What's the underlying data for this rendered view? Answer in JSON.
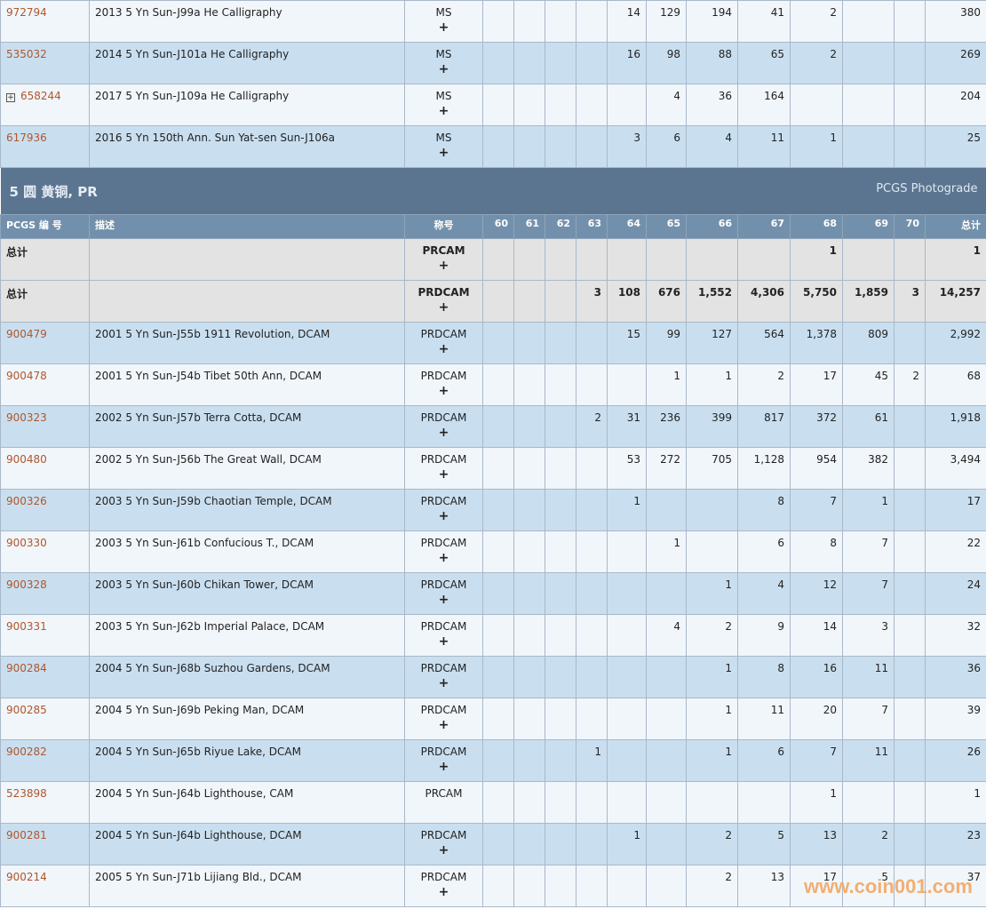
{
  "top_rows": [
    {
      "pcgs": "972794",
      "desc": "2013 5 Yn Sun-J99a He Calligraphy",
      "designation": "MS",
      "plus": "+",
      "grades": [
        "",
        "",
        "",
        "",
        "14",
        "129",
        "194",
        "41",
        "2",
        "",
        ""
      ],
      "total": "380"
    },
    {
      "pcgs": "535032",
      "desc": "2014 5 Yn Sun-J101a He Calligraphy",
      "designation": "MS",
      "plus": "+",
      "grades": [
        "",
        "",
        "",
        "",
        "16",
        "98",
        "88",
        "65",
        "2",
        "",
        ""
      ],
      "total": "269"
    },
    {
      "pcgs": "658244",
      "expandable": true,
      "desc": "2017 5 Yn Sun-J109a He Calligraphy",
      "designation": "MS",
      "plus": "+",
      "grades": [
        "",
        "",
        "",
        "",
        "",
        "4",
        "36",
        "164",
        "",
        "",
        ""
      ],
      "total": "204"
    },
    {
      "pcgs": "617936",
      "desc": "2016 5 Yn 150th Ann. Sun Yat-sen Sun-J106a",
      "designation": "MS",
      "plus": "+",
      "grades": [
        "",
        "",
        "",
        "",
        "3",
        "6",
        "4",
        "11",
        "1",
        "",
        ""
      ],
      "total": "25"
    }
  ],
  "section": {
    "title": "5 圆 黄铜, PR",
    "right_label": "PCGS Photograde"
  },
  "columns": {
    "pcgs": "PCGS 编 号",
    "desc": "描述",
    "designation": "称号",
    "grades": [
      "60",
      "61",
      "62",
      "63",
      "64",
      "65",
      "66",
      "67",
      "68",
      "69",
      "70"
    ],
    "total": "总计"
  },
  "total_rows": [
    {
      "label": "总计",
      "designation": "PRCAM",
      "plus": "+",
      "grades": [
        "",
        "",
        "",
        "",
        "",
        "",
        "",
        "",
        "1",
        "",
        ""
      ],
      "total": "1"
    },
    {
      "label": "总计",
      "designation": "PRDCAM",
      "plus": "+",
      "grades": [
        "",
        "",
        "",
        "3",
        "108",
        "676",
        "1,552",
        "4,306",
        "5,750",
        "1,859",
        "3"
      ],
      "total": "14,257"
    }
  ],
  "rows": [
    {
      "pcgs": "900479",
      "desc": "2001 5 Yn Sun-J55b 1911 Revolution, DCAM",
      "designation": "PRDCAM",
      "plus": "+",
      "grades": [
        "",
        "",
        "",
        "",
        "15",
        "99",
        "127",
        "564",
        "1,378",
        "809",
        ""
      ],
      "total": "2,992"
    },
    {
      "pcgs": "900478",
      "desc": "2001 5 Yn Sun-J54b Tibet 50th Ann, DCAM",
      "designation": "PRDCAM",
      "plus": "+",
      "grades": [
        "",
        "",
        "",
        "",
        "",
        "1",
        "1",
        "2",
        "17",
        "45",
        "2"
      ],
      "total": "68"
    },
    {
      "pcgs": "900323",
      "desc": "2002 5 Yn Sun-J57b Terra Cotta, DCAM",
      "designation": "PRDCAM",
      "plus": "+",
      "grades": [
        "",
        "",
        "",
        "2",
        "31",
        "236",
        "399",
        "817",
        "372",
        "61",
        ""
      ],
      "total": "1,918"
    },
    {
      "pcgs": "900480",
      "desc": "2002 5 Yn Sun-J56b The Great Wall, DCAM",
      "designation": "PRDCAM",
      "plus": "+",
      "grades": [
        "",
        "",
        "",
        "",
        "53",
        "272",
        "705",
        "1,128",
        "954",
        "382",
        ""
      ],
      "total": "3,494"
    },
    {
      "pcgs": "900326",
      "desc": "2003 5 Yn Sun-J59b Chaotian Temple, DCAM",
      "designation": "PRDCAM",
      "plus": "+",
      "grades": [
        "",
        "",
        "",
        "",
        "1",
        "",
        "",
        "8",
        "7",
        "1",
        ""
      ],
      "total": "17"
    },
    {
      "pcgs": "900330",
      "desc": "2003 5 Yn Sun-J61b Confucious T., DCAM",
      "designation": "PRDCAM",
      "plus": "+",
      "grades": [
        "",
        "",
        "",
        "",
        "",
        "1",
        "",
        "6",
        "8",
        "7",
        ""
      ],
      "total": "22"
    },
    {
      "pcgs": "900328",
      "desc": "2003 5 Yn Sun-J60b Chikan Tower, DCAM",
      "designation": "PRDCAM",
      "plus": "+",
      "grades": [
        "",
        "",
        "",
        "",
        "",
        "",
        "1",
        "4",
        "12",
        "7",
        ""
      ],
      "total": "24"
    },
    {
      "pcgs": "900331",
      "desc": "2003 5 Yn Sun-J62b Imperial Palace, DCAM",
      "designation": "PRDCAM",
      "plus": "+",
      "grades": [
        "",
        "",
        "",
        "",
        "",
        "4",
        "2",
        "9",
        "14",
        "3",
        ""
      ],
      "total": "32"
    },
    {
      "pcgs": "900284",
      "desc": "2004 5 Yn Sun-J68b Suzhou Gardens, DCAM",
      "designation": "PRDCAM",
      "plus": "+",
      "grades": [
        "",
        "",
        "",
        "",
        "",
        "",
        "1",
        "8",
        "16",
        "11",
        ""
      ],
      "total": "36"
    },
    {
      "pcgs": "900285",
      "desc": "2004 5 Yn Sun-J69b Peking Man, DCAM",
      "designation": "PRDCAM",
      "plus": "+",
      "grades": [
        "",
        "",
        "",
        "",
        "",
        "",
        "1",
        "11",
        "20",
        "7",
        ""
      ],
      "total": "39"
    },
    {
      "pcgs": "900282",
      "desc": "2004 5 Yn Sun-J65b Riyue Lake, DCAM",
      "designation": "PRDCAM",
      "plus": "+",
      "grades": [
        "",
        "",
        "",
        "1",
        "",
        "",
        "1",
        "6",
        "7",
        "11",
        ""
      ],
      "total": "26"
    },
    {
      "pcgs": "523898",
      "desc": "2004 5 Yn Sun-J64b Lighthouse, CAM",
      "designation": "PRCAM",
      "plus": "",
      "grades": [
        "",
        "",
        "",
        "",
        "",
        "",
        "",
        "",
        "1",
        "",
        ""
      ],
      "total": "1"
    },
    {
      "pcgs": "900281",
      "desc": "2004 5 Yn Sun-J64b Lighthouse, DCAM",
      "designation": "PRDCAM",
      "plus": "+",
      "grades": [
        "",
        "",
        "",
        "",
        "1",
        "",
        "2",
        "5",
        "13",
        "2",
        ""
      ],
      "total": "23"
    },
    {
      "pcgs": "900214",
      "desc": "2005 5 Yn Sun-J71b Lijiang Bld., DCAM",
      "designation": "PRDCAM",
      "plus": "+",
      "grades": [
        "",
        "",
        "",
        "",
        "",
        "",
        "2",
        "13",
        "17",
        "5",
        ""
      ],
      "total": "37"
    }
  ],
  "watermark": "www.coin001.com",
  "colors": {
    "link": "#b0562c",
    "section_bg": "#5b7590",
    "header_bg": "#7290ab",
    "row_blue": "#c9dff0",
    "row_light": "#f1f6fb",
    "total_bg": "#e3e3e3"
  }
}
